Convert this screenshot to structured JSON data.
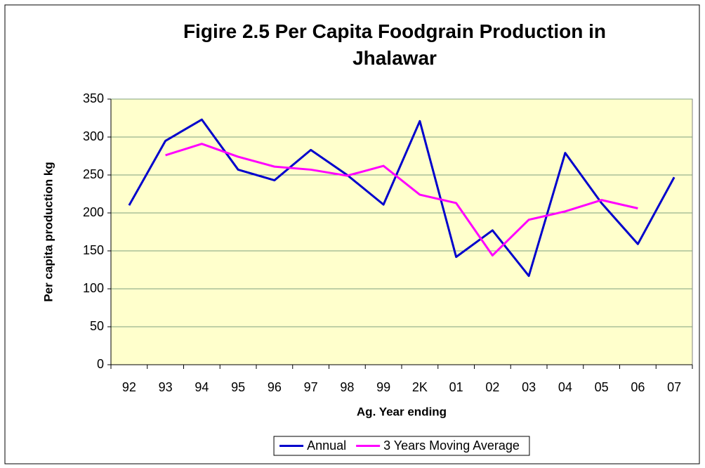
{
  "chart_data": {
    "type": "line",
    "title": "Figire 2.5 Per Capita Foodgrain Production in Jhalawar",
    "x_label": "Ag. Year ending",
    "y_label": "Per capita production kg",
    "categories": [
      "92",
      "93",
      "94",
      "95",
      "96",
      "97",
      "98",
      "99",
      "2K",
      "01",
      "02",
      "03",
      "04",
      "05",
      "06",
      "07"
    ],
    "series": [
      {
        "name": "Annual",
        "color": "#0000cc",
        "values": [
          210,
          295,
          323,
          257,
          243,
          283,
          250,
          211,
          321,
          142,
          177,
          117,
          279,
          213,
          159,
          247
        ]
      },
      {
        "name": "3 Years Moving Average",
        "color": "#ff00ff",
        "values": [
          null,
          276,
          291,
          274,
          261,
          257,
          249,
          262,
          224,
          213,
          144,
          191,
          202,
          217,
          206,
          null
        ]
      }
    ],
    "ylim": [
      0,
      350
    ],
    "yticks": [
      0,
      50,
      100,
      150,
      200,
      250,
      300,
      350
    ],
    "grid": true,
    "legend": "bottom",
    "plot_background": "#ffffcc"
  }
}
